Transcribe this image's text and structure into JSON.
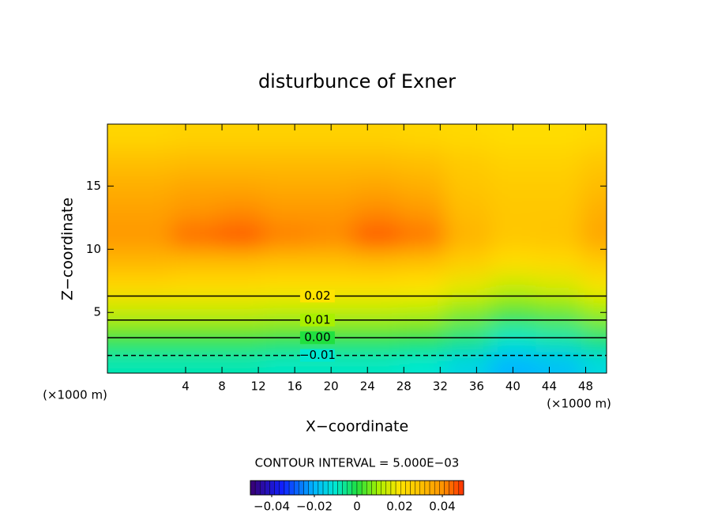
{
  "chart_data": {
    "type": "contour",
    "title": "disturbunce of Exner",
    "x_label": "X−coordinate",
    "y_label": "Z−coordinate",
    "x_unit_left": "(×1000 m)",
    "x_unit_right": "(×1000 m)",
    "interval_text": "CONTOUR INTERVAL = 5.000E−03",
    "x": [
      0,
      5,
      10,
      15,
      20,
      25,
      30,
      35,
      40,
      45,
      50
    ],
    "z": [
      1,
      3,
      5,
      7,
      9,
      11,
      13,
      15,
      17,
      19
    ],
    "values": [
      [
        -0.008,
        -0.008,
        -0.008,
        -0.009,
        -0.009,
        -0.009,
        -0.01,
        -0.014,
        -0.02,
        -0.018,
        -0.013
      ],
      [
        0.002,
        0.002,
        0.002,
        0.001,
        0.001,
        0.001,
        0.0,
        -0.004,
        -0.009,
        -0.007,
        -0.003
      ],
      [
        0.013,
        0.013,
        0.013,
        0.012,
        0.012,
        0.012,
        0.011,
        0.007,
        0.003,
        0.005,
        0.009
      ],
      [
        0.023,
        0.022,
        0.022,
        0.021,
        0.021,
        0.021,
        0.02,
        0.017,
        0.013,
        0.015,
        0.019
      ],
      [
        0.032,
        0.031,
        0.031,
        0.03,
        0.03,
        0.031,
        0.03,
        0.026,
        0.022,
        0.023,
        0.027
      ],
      [
        0.039,
        0.044,
        0.046,
        0.042,
        0.041,
        0.046,
        0.043,
        0.033,
        0.028,
        0.029,
        0.036
      ],
      [
        0.037,
        0.04,
        0.041,
        0.039,
        0.039,
        0.041,
        0.039,
        0.031,
        0.028,
        0.028,
        0.034
      ],
      [
        0.034,
        0.036,
        0.036,
        0.035,
        0.035,
        0.036,
        0.034,
        0.029,
        0.027,
        0.027,
        0.031
      ],
      [
        0.03,
        0.031,
        0.031,
        0.031,
        0.031,
        0.031,
        0.03,
        0.027,
        0.025,
        0.025,
        0.028
      ],
      [
        0.024,
        0.025,
        0.025,
        0.025,
        0.025,
        0.025,
        0.024,
        0.023,
        0.022,
        0.022,
        0.023
      ]
    ],
    "xlim": [
      -4.6,
      50.3
    ],
    "ylim": [
      0.2,
      19.9
    ],
    "xticks": [
      4,
      8,
      12,
      16,
      20,
      24,
      28,
      32,
      36,
      40,
      44,
      48
    ],
    "yticks": [
      5,
      10,
      15
    ],
    "contour_labels": [
      {
        "value": 0.02,
        "label": "0.02"
      },
      {
        "value": 0.01,
        "label": "0.01"
      },
      {
        "value": 0.0,
        "label": "0.00"
      },
      {
        "value": -0.01,
        "label": "−0.01"
      }
    ],
    "colorbar_lim": [
      -0.05,
      0.05
    ],
    "colorbar_ticks": [
      {
        "value": -0.04,
        "label": "−0.04"
      },
      {
        "value": -0.02,
        "label": "−0.02"
      },
      0,
      0.02,
      0.04
    ],
    "colormap": [
      {
        "value": -0.05,
        "color": "#3a0070"
      },
      {
        "value": -0.035,
        "color": "#1020ff"
      },
      {
        "value": -0.02,
        "color": "#00b8ff"
      },
      {
        "value": -0.01,
        "color": "#00e8d0"
      },
      {
        "value": 0.0,
        "color": "#20e040"
      },
      {
        "value": 0.01,
        "color": "#a8f000"
      },
      {
        "value": 0.02,
        "color": "#ffe400"
      },
      {
        "value": 0.03,
        "color": "#ffc000"
      },
      {
        "value": 0.04,
        "color": "#ff9400"
      },
      {
        "value": 0.05,
        "color": "#ff3000"
      }
    ]
  }
}
